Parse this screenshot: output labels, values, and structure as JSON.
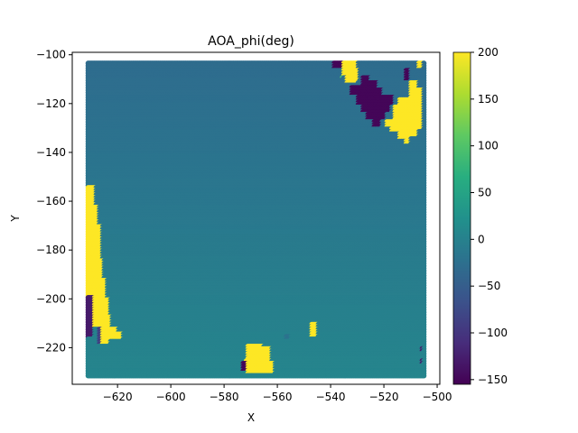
{
  "chart_data": {
    "type": "scatter",
    "title": "AOA_phi(deg)",
    "xlabel": "X",
    "ylabel": "Y",
    "xlim": [
      -637,
      -499
    ],
    "ylim": [
      -235,
      -99
    ],
    "xticks": [
      -620,
      -600,
      -580,
      -560,
      -540,
      -520,
      -500
    ],
    "yticks": [
      -100,
      -120,
      -140,
      -160,
      -180,
      -200,
      -220
    ],
    "grid": false,
    "colormap": "viridis",
    "colorbar": {
      "range": [
        -155,
        200
      ],
      "ticks": [
        200,
        150,
        100,
        50,
        0,
        -50,
        -100,
        -150
      ]
    },
    "grid_points": {
      "x_range": [
        -631,
        -505
      ],
      "y_range": [
        -231,
        -103.5
      ],
      "x_step": 0.6,
      "y_step": 1.0,
      "background_value_top": -30,
      "background_value_bottom": 5
    },
    "regions": [
      {
        "value": 200,
        "poly": [
          [
            -631,
            -154
          ],
          [
            -628,
            -154
          ],
          [
            -628,
            -162
          ],
          [
            -627,
            -162
          ],
          [
            -627,
            -170
          ],
          [
            -626,
            -170
          ],
          [
            -626,
            -184
          ],
          [
            -625,
            -184
          ],
          [
            -625,
            -192
          ],
          [
            -624,
            -192
          ],
          [
            -624,
            -200
          ],
          [
            -623,
            -200
          ],
          [
            -623,
            -207
          ],
          [
            -622,
            -207
          ],
          [
            -622,
            -212
          ],
          [
            -620,
            -212
          ],
          [
            -620,
            -214
          ],
          [
            -618,
            -214
          ],
          [
            -618,
            -217
          ],
          [
            -623,
            -217
          ],
          [
            -623,
            -219
          ],
          [
            -627,
            -219
          ],
          [
            -627,
            -212
          ],
          [
            -629,
            -212
          ],
          [
            -629,
            -205
          ],
          [
            -631,
            -205
          ]
        ]
      },
      {
        "value": -130,
        "poly": [
          [
            -631,
            -199
          ],
          [
            -629,
            -199
          ],
          [
            -629,
            -216
          ],
          [
            -631,
            -216
          ]
        ]
      },
      {
        "value": -90,
        "poly": [
          [
            -627,
            -212
          ],
          [
            -626,
            -212
          ],
          [
            -626,
            -219
          ],
          [
            -627,
            -219
          ]
        ]
      },
      {
        "value": 200,
        "poly": [
          [
            -571,
            -219
          ],
          [
            -565,
            -219
          ],
          [
            -565,
            -220
          ],
          [
            -562,
            -220
          ],
          [
            -562,
            -226
          ],
          [
            -561,
            -226
          ],
          [
            -561,
            -231
          ],
          [
            -571,
            -231
          ],
          [
            -571,
            -229
          ],
          [
            -572,
            -229
          ],
          [
            -572,
            -225
          ],
          [
            -571,
            -225
          ]
        ]
      },
      {
        "value": -150,
        "poly": [
          [
            -573,
            -226
          ],
          [
            -571,
            -226
          ],
          [
            -571,
            -230
          ],
          [
            -573,
            -230
          ]
        ]
      },
      {
        "value": 200,
        "poly": [
          [
            -547,
            -210
          ],
          [
            -545,
            -210
          ],
          [
            -545,
            -216
          ],
          [
            -547,
            -216
          ]
        ]
      },
      {
        "value": -20,
        "poly": [
          [
            -557,
            -215
          ],
          [
            -555,
            -215
          ],
          [
            -555,
            -217
          ],
          [
            -557,
            -217
          ]
        ]
      },
      {
        "value": -150,
        "poly": [
          [
            -539,
            -103
          ],
          [
            -534,
            -103
          ],
          [
            -534,
            -106
          ],
          [
            -539,
            -106
          ]
        ]
      },
      {
        "value": 200,
        "poly": [
          [
            -535,
            -103
          ],
          [
            -530,
            -103
          ],
          [
            -530,
            -106
          ],
          [
            -529,
            -106
          ],
          [
            -529,
            -111
          ],
          [
            -530,
            -111
          ],
          [
            -530,
            -112
          ],
          [
            -534,
            -112
          ],
          [
            -534,
            -109
          ],
          [
            -535,
            -109
          ]
        ]
      },
      {
        "value": -150,
        "poly": [
          [
            -532,
            -113
          ],
          [
            -528,
            -113
          ],
          [
            -528,
            -109
          ],
          [
            -525,
            -109
          ],
          [
            -525,
            -111
          ],
          [
            -522,
            -111
          ],
          [
            -522,
            -114
          ],
          [
            -520,
            -114
          ],
          [
            -520,
            -117
          ],
          [
            -516,
            -117
          ],
          [
            -516,
            -121
          ],
          [
            -517,
            -121
          ],
          [
            -517,
            -124
          ],
          [
            -519,
            -124
          ],
          [
            -519,
            -127
          ],
          [
            -521,
            -127
          ],
          [
            -521,
            -130
          ],
          [
            -524,
            -130
          ],
          [
            -524,
            -127
          ],
          [
            -526,
            -127
          ],
          [
            -526,
            -124
          ],
          [
            -528,
            -124
          ],
          [
            -528,
            -121
          ],
          [
            -530,
            -121
          ],
          [
            -530,
            -117
          ],
          [
            -532,
            -117
          ]
        ]
      },
      {
        "value": 200,
        "poly": [
          [
            -519,
            -127
          ],
          [
            -516,
            -127
          ],
          [
            -516,
            -121
          ],
          [
            -514,
            -121
          ],
          [
            -514,
            -118
          ],
          [
            -510,
            -118
          ],
          [
            -510,
            -111
          ],
          [
            -507,
            -111
          ],
          [
            -507,
            -114
          ],
          [
            -505,
            -114
          ],
          [
            -505,
            -131
          ],
          [
            -507,
            -131
          ],
          [
            -507,
            -134
          ],
          [
            -510,
            -134
          ],
          [
            -510,
            -137
          ],
          [
            -512,
            -137
          ],
          [
            -512,
            -135
          ],
          [
            -514,
            -135
          ],
          [
            -514,
            -132
          ],
          [
            -517,
            -132
          ],
          [
            -517,
            -130
          ],
          [
            -519,
            -130
          ]
        ]
      },
      {
        "value": -150,
        "poly": [
          [
            -512,
            -106
          ],
          [
            -510,
            -106
          ],
          [
            -510,
            -111
          ],
          [
            -512,
            -111
          ]
        ]
      },
      {
        "value": 200,
        "poly": [
          [
            -507,
            -103
          ],
          [
            -505,
            -103
          ],
          [
            -505,
            -106
          ],
          [
            -507,
            -106
          ]
        ]
      },
      {
        "value": 90,
        "poly": [
          [
            -536,
            -109
          ],
          [
            -535,
            -109
          ],
          [
            -535,
            -110
          ],
          [
            -536,
            -110
          ]
        ]
      },
      {
        "value": -130,
        "poly": [
          [
            -506,
            -220
          ],
          [
            -505,
            -220
          ],
          [
            -505,
            -222
          ],
          [
            -506,
            -222
          ]
        ]
      },
      {
        "value": -130,
        "poly": [
          [
            -506,
            -225
          ],
          [
            -505,
            -225
          ],
          [
            -505,
            -227
          ],
          [
            -506,
            -227
          ]
        ]
      }
    ]
  }
}
